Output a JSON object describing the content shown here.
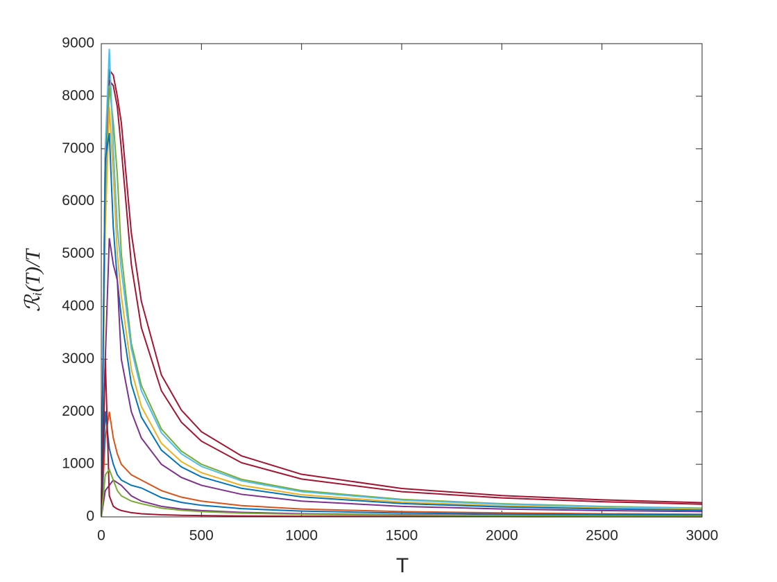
{
  "chart_data": {
    "type": "line",
    "xlabel": "T",
    "ylabel": "ℛᵢ(T)/T",
    "x": [
      0,
      20,
      40,
      60,
      80,
      100,
      150,
      200,
      300,
      400,
      500,
      700,
      1000,
      1500,
      2000,
      2500,
      3000
    ],
    "series": [
      {
        "color": "#A2142F",
        "values": [
          0,
          7000,
          8500,
          8400,
          8000,
          7500,
          5400,
          4100,
          2700,
          2030,
          1620,
          1160,
          810,
          540,
          405,
          324,
          270
        ]
      },
      {
        "color": "#A2142F",
        "values": [
          0,
          6500,
          8300,
          8200,
          7800,
          7000,
          4800,
          3600,
          2400,
          1800,
          1440,
          1030,
          720,
          480,
          360,
          288,
          240
        ]
      },
      {
        "color": "#77AC30",
        "values": [
          0,
          6000,
          8200,
          7500,
          6500,
          5000,
          3300,
          2500,
          1670,
          1250,
          1000,
          714,
          500,
          333,
          250,
          200,
          167
        ]
      },
      {
        "color": "#4DBEEE",
        "values": [
          0,
          7000,
          8900,
          7000,
          5500,
          4700,
          3200,
          2400,
          1600,
          1200,
          960,
          686,
          480,
          320,
          240,
          192,
          160
        ]
      },
      {
        "color": "#EDB120",
        "values": [
          0,
          5500,
          7800,
          6500,
          5000,
          4200,
          2800,
          2100,
          1400,
          1050,
          840,
          600,
          420,
          280,
          210,
          168,
          140
        ]
      },
      {
        "color": "#0072BD",
        "values": [
          0,
          6800,
          7300,
          5500,
          4500,
          3800,
          2530,
          1900,
          1270,
          950,
          760,
          543,
          380,
          253,
          190,
          152,
          127
        ]
      },
      {
        "color": "#7E2F8E",
        "values": [
          0,
          3000,
          5300,
          4800,
          4500,
          3000,
          2000,
          1500,
          1000,
          750,
          600,
          429,
          300,
          200,
          150,
          120,
          100
        ]
      },
      {
        "color": "#D95319",
        "values": [
          0,
          1500,
          2000,
          1500,
          1200,
          1000,
          800,
          700,
          500,
          375,
          300,
          214,
          150,
          100,
          75,
          60,
          50
        ]
      },
      {
        "color": "#0072BD",
        "values": [
          0,
          2000,
          1300,
          1000,
          800,
          700,
          600,
          550,
          367,
          275,
          220,
          157,
          110,
          73,
          55,
          44,
          37
        ]
      },
      {
        "color": "#7E2F8E",
        "values": [
          0,
          500,
          600,
          700,
          650,
          600,
          400,
          300,
          200,
          150,
          120,
          86,
          60,
          40,
          30,
          24,
          20
        ]
      },
      {
        "color": "#A2142F",
        "values": [
          0,
          3000,
          400,
          200,
          150,
          120,
          80,
          60,
          40,
          30,
          24,
          17,
          12,
          8,
          6,
          5,
          4
        ]
      },
      {
        "color": "#77AC30",
        "values": [
          0,
          800,
          900,
          700,
          500,
          400,
          300,
          250,
          167,
          125,
          100,
          71,
          50,
          33,
          25,
          20,
          17
        ]
      }
    ],
    "xlim": [
      0,
      3000
    ],
    "xticks": [
      0,
      500,
      1000,
      1500,
      2000,
      2500,
      3000
    ],
    "ylim": [
      0,
      9000
    ],
    "yticks": [
      0,
      1000,
      2000,
      3000,
      4000,
      5000,
      6000,
      7000,
      8000,
      9000
    ],
    "grid": false
  }
}
